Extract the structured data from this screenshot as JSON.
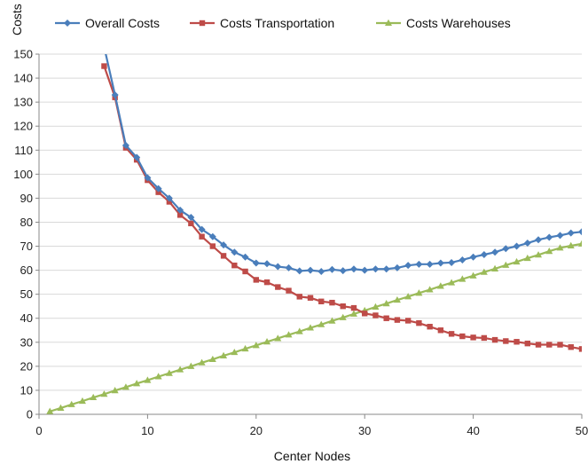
{
  "chart_data": {
    "type": "line",
    "xlabel": "Center Nodes",
    "ylabel": "Costs",
    "xlim": [
      0,
      50
    ],
    "ylim": [
      0,
      150
    ],
    "xticks": [
      0,
      10,
      20,
      30,
      40,
      50
    ],
    "yticks": [
      0,
      10,
      20,
      30,
      40,
      50,
      60,
      70,
      80,
      90,
      100,
      110,
      120,
      130,
      140,
      150
    ],
    "grid": "horizontal",
    "legend_position": "top",
    "x": [
      1,
      2,
      3,
      4,
      5,
      6,
      7,
      8,
      9,
      10,
      11,
      12,
      13,
      14,
      15,
      16,
      17,
      18,
      19,
      20,
      21,
      22,
      23,
      24,
      25,
      26,
      27,
      28,
      29,
      30,
      31,
      32,
      33,
      34,
      35,
      36,
      37,
      38,
      39,
      40,
      41,
      42,
      43,
      44,
      45,
      46,
      47,
      48,
      49,
      50
    ],
    "series": [
      {
        "name": "Overall Costs",
        "color": "#4a7ebb",
        "marker": "diamond",
        "values": [
          null,
          null,
          null,
          null,
          null,
          153,
          133,
          112,
          107,
          98.5,
          94,
          90,
          85,
          82,
          77,
          74,
          70.5,
          67.5,
          65.5,
          63,
          62.7,
          61.5,
          61,
          59.7,
          60,
          59.5,
          60.3,
          59.8,
          60.5,
          60,
          60.5,
          60.5,
          61,
          62,
          62.5,
          62.5,
          63,
          63.2,
          64.3,
          65.5,
          66.5,
          67.5,
          69,
          70,
          71.3,
          72.7,
          73.7,
          74.5,
          75.5,
          76
        ]
      },
      {
        "name": "Costs Transportation",
        "color": "#be4b48",
        "marker": "square",
        "values": [
          null,
          null,
          null,
          null,
          null,
          145,
          132,
          111,
          106,
          97.5,
          92.5,
          88.5,
          83,
          79.5,
          74,
          70,
          66,
          62,
          59.5,
          56,
          55,
          53,
          51.5,
          49,
          48.5,
          47,
          46.5,
          45,
          44.3,
          42,
          41.2,
          40,
          39.3,
          39,
          38,
          36.5,
          35,
          33.5,
          32.5,
          32,
          31.8,
          31,
          30.5,
          30.2,
          29.5,
          29,
          29,
          29,
          28,
          27.2
        ]
      },
      {
        "name": "Costs Warehouses",
        "color": "#9bbb59",
        "marker": "triangle",
        "values": [
          1.2,
          2.6,
          4.1,
          5.5,
          7,
          8.4,
          9.9,
          11.3,
          12.8,
          14.2,
          15.7,
          17.1,
          18.6,
          20,
          21.5,
          22.9,
          24.4,
          25.8,
          27.3,
          28.7,
          30.2,
          31.6,
          33.1,
          34.5,
          36,
          37.4,
          38.9,
          40.3,
          41.8,
          43.2,
          44.7,
          46.1,
          47.6,
          49,
          50.5,
          51.9,
          53.4,
          54.8,
          56.3,
          57.7,
          59.2,
          60.6,
          62.1,
          63.5,
          65,
          66.4,
          67.9,
          69.3,
          70.2,
          71
        ]
      }
    ]
  }
}
